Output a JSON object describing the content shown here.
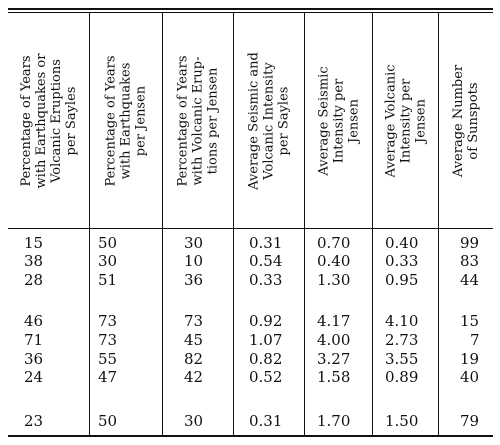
{
  "table": {
    "headers": [
      "Percentage of Years\nwith Earthquakes or\nVolcanic Eruptions\nper Sayles",
      "Percentage of Years\nwith Earthquakes\nper Jensen",
      "Percentage of Years\nwith Volcanic Erup-\ntions per Jensen",
      "Average Seismic and\nVolcanic Intensity\nper Sayles",
      "Average Seismic\nIntensity per\nJensen",
      "Average Volcanic\nIntensity per\nJensen",
      "Average Number\nof Sunspots"
    ],
    "rows": [
      [
        "15",
        "50",
        "30",
        "0.31",
        "0.70",
        "0.40",
        "99"
      ],
      [
        "38",
        "30",
        "10",
        "0.54",
        "0.40",
        "0.33",
        "83"
      ],
      [
        "28",
        "51",
        "36",
        "0.33",
        "1.30",
        "0.95",
        "44"
      ],
      [
        "46",
        "73",
        "73",
        "0.92",
        "4.17",
        "4.10",
        "15"
      ],
      [
        "71",
        "73",
        "45",
        "1.07",
        "4.00",
        "2.73",
        "7"
      ],
      [
        "36",
        "55",
        "82",
        "0.82",
        "3.27",
        "3.55",
        "19"
      ],
      [
        "24",
        "47",
        "42",
        "0.52",
        "1.58",
        "0.89",
        "40"
      ],
      [
        "23",
        "50",
        "30",
        "0.31",
        "1.70",
        "1.50",
        "79"
      ]
    ]
  }
}
